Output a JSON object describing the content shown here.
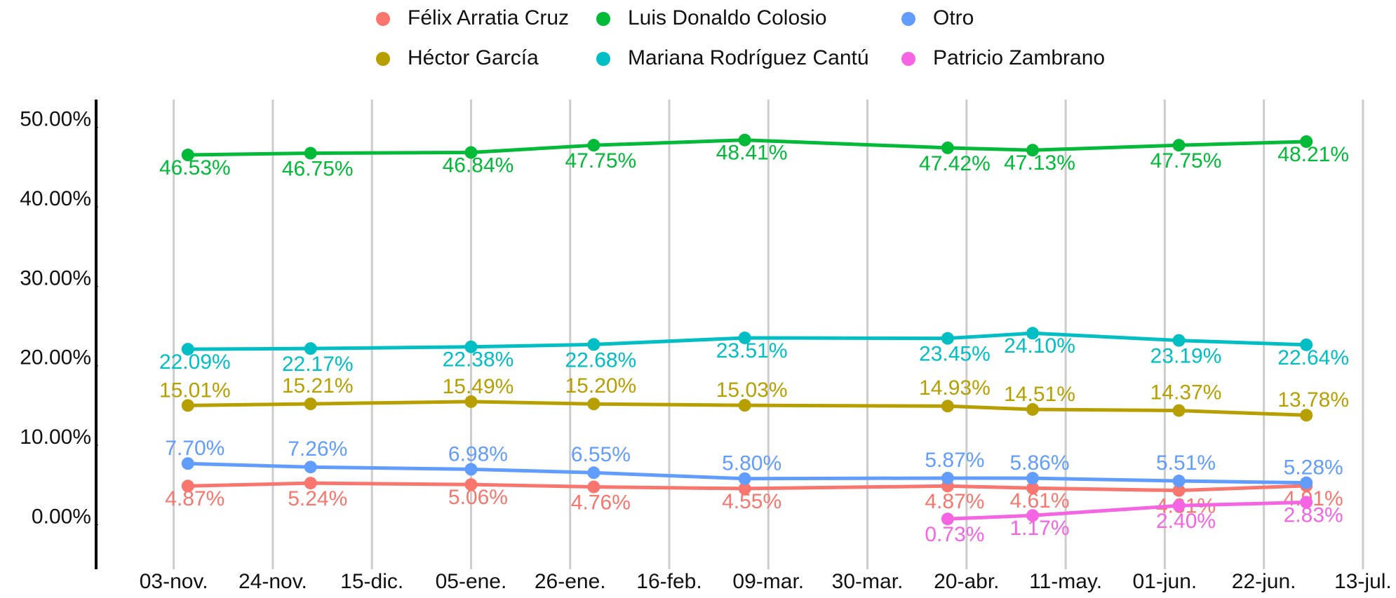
{
  "chart_data": {
    "type": "line",
    "x": [
      3,
      29,
      63,
      89,
      121,
      164,
      182,
      213,
      240
    ],
    "xlim": [
      -16,
      259
    ],
    "xticks": [
      {
        "value": 0,
        "label": "03-nov."
      },
      {
        "value": 21,
        "label": "24-nov."
      },
      {
        "value": 42,
        "label": "15-dic."
      },
      {
        "value": 63,
        "label": "05-ene."
      },
      {
        "value": 84,
        "label": "26-ene."
      },
      {
        "value": 105,
        "label": "16-feb."
      },
      {
        "value": 126,
        "label": "09-mar."
      },
      {
        "value": 147,
        "label": "30-mar."
      },
      {
        "value": 168,
        "label": "20-abr."
      },
      {
        "value": 189,
        "label": "11-may."
      },
      {
        "value": 210,
        "label": "01-jun."
      },
      {
        "value": 231,
        "label": "22-jun."
      },
      {
        "value": 252,
        "label": "13-jul."
      }
    ],
    "ylim": [
      -5.6,
      53.5
    ],
    "yticks": [
      {
        "value": 0,
        "label": "0.00%"
      },
      {
        "value": 10,
        "label": "10.00%"
      },
      {
        "value": 20,
        "label": "20.00%"
      },
      {
        "value": 30,
        "label": "30.00%"
      },
      {
        "value": 40,
        "label": "40.00%"
      },
      {
        "value": 50,
        "label": "50.00%"
      }
    ],
    "grid": true,
    "series": [
      {
        "name": "Félix Arratia Cruz",
        "color": "#f8766d",
        "values": [
          4.87,
          5.24,
          5.06,
          4.76,
          4.55,
          4.87,
          4.61,
          4.31,
          4.91
        ],
        "value_labels": [
          "4.87%",
          "5.24%",
          "5.06%",
          "4.76%",
          "4.55%",
          "4.87%",
          "4.61%",
          "4.31%",
          "4.91%"
        ]
      },
      {
        "name": "Héctor García",
        "color": "#b79f00",
        "values": [
          15.01,
          15.21,
          15.49,
          15.2,
          15.03,
          14.93,
          14.51,
          14.37,
          13.78
        ],
        "value_labels": [
          "15.01%",
          "15.21%",
          "15.49%",
          "15.20%",
          "15.03%",
          "14.93%",
          "14.51%",
          "14.37%",
          "13.78%"
        ]
      },
      {
        "name": "Luis Donaldo Colosio",
        "color": "#00ba38",
        "values": [
          46.53,
          46.75,
          46.84,
          47.75,
          48.41,
          47.42,
          47.13,
          47.75,
          48.21
        ],
        "value_labels": [
          "46.53%",
          "46.75%",
          "46.84%",
          "47.75%",
          "48.41%",
          "47.42%",
          "47.13%",
          "47.75%",
          "48.21%"
        ]
      },
      {
        "name": "Mariana Rodríguez Cantú",
        "color": "#00bfc4",
        "values": [
          22.09,
          22.17,
          22.38,
          22.68,
          23.51,
          23.45,
          24.1,
          23.19,
          22.64
        ],
        "value_labels": [
          "22.09%",
          "22.17%",
          "22.38%",
          "22.68%",
          "23.51%",
          "23.45%",
          "24.10%",
          "23.19%",
          "22.64%"
        ]
      },
      {
        "name": "Otro",
        "color": "#619cff",
        "values": [
          7.7,
          7.26,
          6.98,
          6.55,
          5.8,
          5.87,
          5.86,
          5.51,
          5.28
        ],
        "value_labels": [
          "7.70%",
          "7.26%",
          "6.98%",
          "6.55%",
          "5.80%",
          "5.87%",
          "5.86%",
          "5.51%",
          "5.28%"
        ]
      },
      {
        "name": "Patricio Zambrano",
        "color": "#f564e3",
        "values": [
          null,
          null,
          null,
          null,
          null,
          0.73,
          1.17,
          2.4,
          2.83
        ],
        "value_labels": [
          null,
          null,
          null,
          null,
          null,
          "0.73%",
          "1.17%",
          "2.40%",
          "2.83%"
        ]
      }
    ]
  }
}
